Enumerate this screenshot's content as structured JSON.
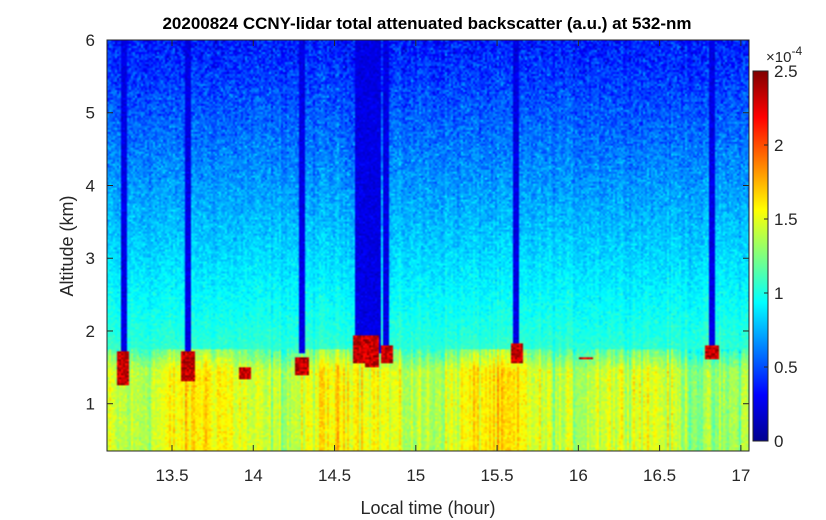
{
  "chart_data": {
    "type": "heatmap",
    "title": "20200824 CCNY-lidar total attenuated backscatter (a.u.) at 532-nm",
    "xlabel": "Local time (hour)",
    "ylabel": "Altitude (km)",
    "xlim": [
      13.1,
      17.05
    ],
    "ylim": [
      0.35,
      6.0
    ],
    "xticks": [
      13.5,
      14,
      14.5,
      15,
      15.5,
      16,
      16.5,
      17
    ],
    "xtick_labels": [
      "13.5",
      "14",
      "14.5",
      "15",
      "15.5",
      "16",
      "16.5",
      "17"
    ],
    "yticks": [
      1,
      2,
      3,
      4,
      5,
      6
    ],
    "ytick_labels": [
      "1",
      "2",
      "3",
      "4",
      "5",
      "6"
    ],
    "colorbar": {
      "colormap": "jet",
      "range": [
        0,
        2.5
      ],
      "ticks": [
        0,
        0.5,
        1,
        1.5,
        2,
        2.5
      ],
      "tick_labels": [
        "0",
        "0.5",
        "1",
        "1.5",
        "2",
        "2.5"
      ],
      "exponent_label": "×10",
      "exponent_power": "-4"
    },
    "cloud_events": [
      {
        "time": 13.2,
        "base_km": 1.25,
        "top_km": 1.72
      },
      {
        "time": 13.6,
        "base_km": 1.3,
        "top_km": 1.72
      },
      {
        "time": 13.95,
        "base_km": 1.35,
        "top_km": 1.5
      },
      {
        "time": 14.3,
        "base_km": 1.4,
        "top_km": 1.65
      },
      {
        "time": 14.65,
        "base_km": 1.55,
        "top_km": 1.95
      },
      {
        "time": 14.73,
        "base_km": 1.5,
        "top_km": 1.95
      },
      {
        "time": 14.82,
        "base_km": 1.55,
        "top_km": 1.8
      },
      {
        "time": 15.62,
        "base_km": 1.55,
        "top_km": 1.82
      },
      {
        "time": 16.05,
        "base_km": 1.6,
        "top_km": 1.65
      },
      {
        "time": 16.82,
        "base_km": 1.6,
        "top_km": 1.8
      }
    ],
    "boundary_layer_top_km": 1.75
  }
}
